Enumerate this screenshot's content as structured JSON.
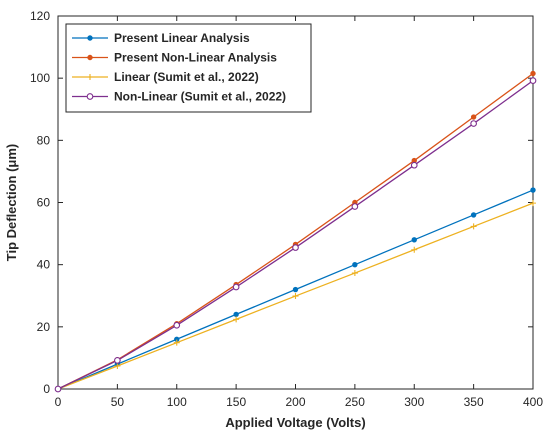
{
  "chart_data": {
    "type": "line",
    "xlabel": "Applied Voltage (Volts)",
    "ylabel": "Tip Deflection (μm)",
    "xlim": [
      0,
      400
    ],
    "ylim": [
      0,
      120
    ],
    "x_ticks": [
      0,
      50,
      100,
      150,
      200,
      250,
      300,
      350,
      400
    ],
    "y_ticks": [
      0,
      20,
      40,
      60,
      80,
      100,
      120
    ],
    "grid": false,
    "legend_position": "top-left",
    "x": [
      0,
      50,
      100,
      150,
      200,
      250,
      300,
      350,
      400
    ],
    "series": [
      {
        "name": "Present Linear Analysis",
        "color": "#0072BD",
        "marker": "dot",
        "values": [
          0,
          8,
          16,
          24,
          32,
          40,
          48,
          56,
          64
        ]
      },
      {
        "name": "Present Non-Linear Analysis",
        "color": "#D95319",
        "marker": "dot",
        "values": [
          0,
          9.4,
          21,
          33.6,
          46.5,
          60,
          73.5,
          87.5,
          101.5
        ]
      },
      {
        "name": "Linear (Sumit et al., 2022)",
        "color": "#EDB120",
        "marker": "plus",
        "values": [
          0,
          7.4,
          14.9,
          22.4,
          29.9,
          37.3,
          44.8,
          52.3,
          59.8
        ]
      },
      {
        "name": "Non-Linear (Sumit et al., 2022)",
        "color": "#7E2F8E",
        "marker": "circle",
        "values": [
          0,
          9.2,
          20.5,
          32.8,
          45.5,
          58.7,
          72,
          85.4,
          99.2
        ]
      }
    ]
  }
}
